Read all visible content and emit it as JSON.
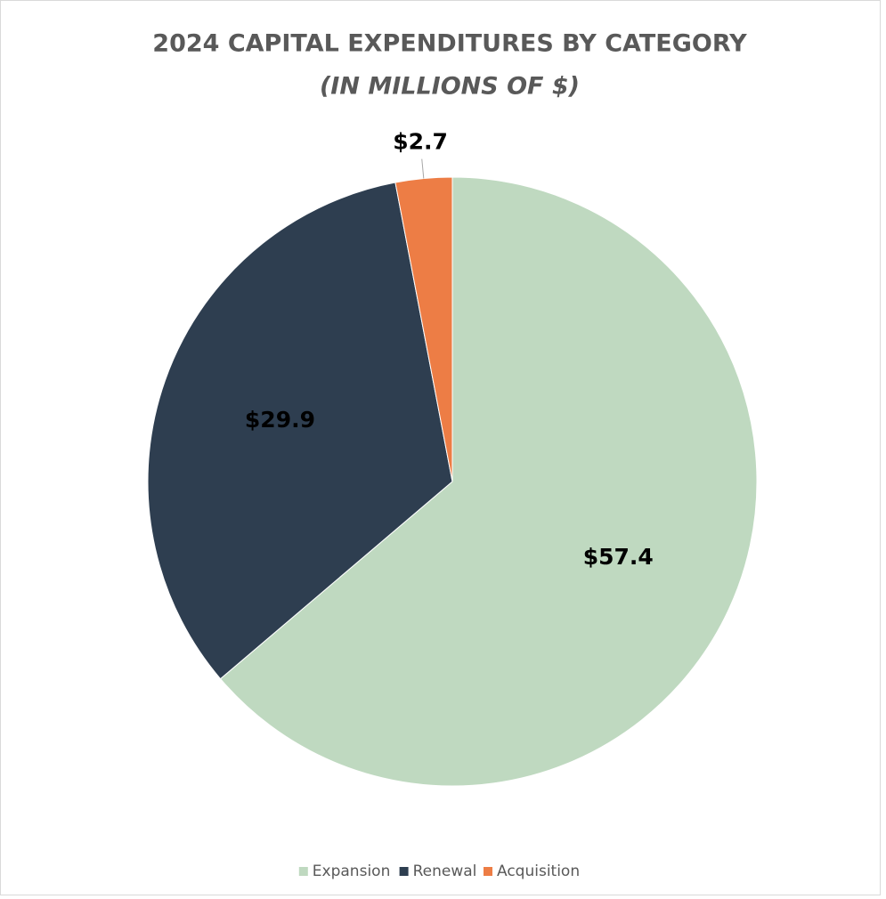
{
  "chart_data": {
    "type": "pie",
    "title": "2024 CAPITAL EXPENDITURES BY CATEGORY",
    "subtitle": "(IN MILLIONS OF $)",
    "categories": [
      "Expansion",
      "Renewal",
      "Acquisition"
    ],
    "values": [
      57.4,
      29.9,
      2.7
    ],
    "value_labels": [
      "$57.4",
      "$29.9",
      "$2.7"
    ],
    "colors": [
      "#bfd9c0",
      "#2e3e50",
      "#ed7d45"
    ],
    "legend": "bottom"
  }
}
